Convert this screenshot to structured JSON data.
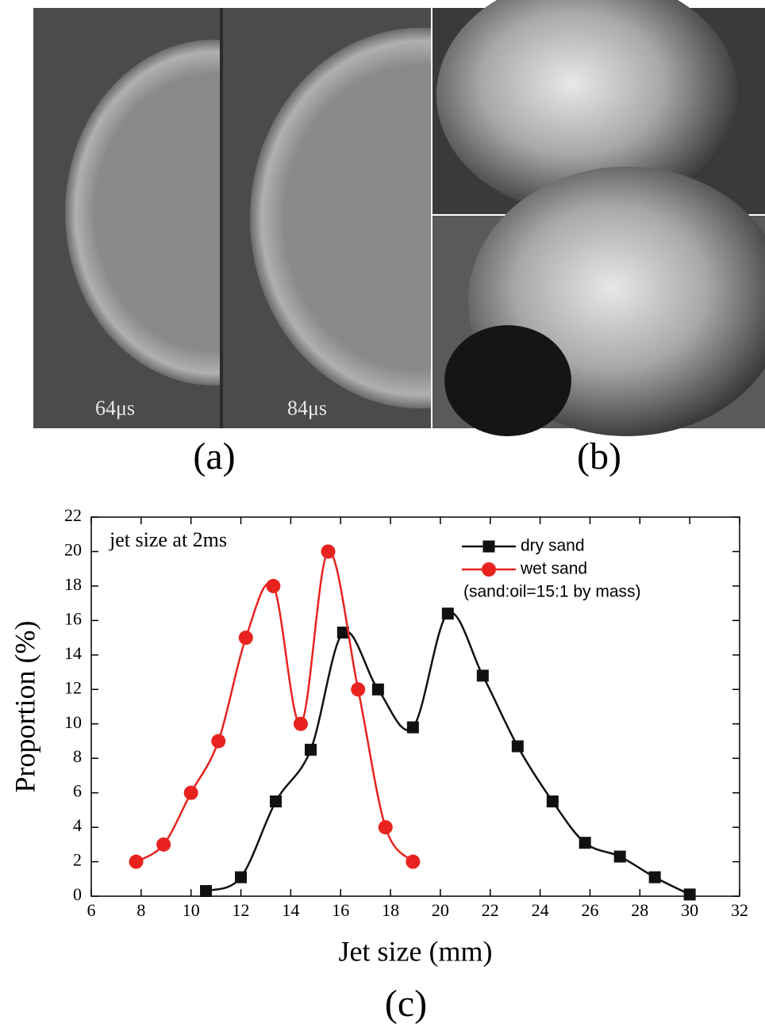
{
  "panel_a": {
    "label": "(a)",
    "frames": [
      "64μs",
      "84μs"
    ]
  },
  "panel_b": {
    "label": "(b)"
  },
  "chart_data": {
    "type": "line",
    "panel_label": "(c)",
    "x_label": "Jet size (mm)",
    "y_label": "Proportion (%)",
    "annotation": "jet size at 2ms",
    "legend_note": "(sand:oil=15:1 by mass)",
    "legend": "top-right",
    "xlim": [
      6,
      32
    ],
    "xticks": [
      6,
      8,
      10,
      12,
      14,
      16,
      18,
      20,
      22,
      24,
      26,
      28,
      30,
      32
    ],
    "ylim": [
      0,
      22
    ],
    "yticks": [
      0,
      2,
      4,
      6,
      8,
      10,
      12,
      14,
      16,
      18,
      20,
      22
    ],
    "series": [
      {
        "name": "dry sand",
        "color": "#111111",
        "marker": "square",
        "x": [
          10.6,
          12.0,
          13.4,
          14.8,
          16.1,
          17.5,
          18.9,
          20.3,
          21.7,
          23.1,
          24.5,
          25.8,
          27.2,
          28.6,
          30.0
        ],
        "values": [
          0.3,
          1.1,
          5.5,
          8.5,
          15.3,
          12.0,
          9.8,
          16.4,
          12.8,
          8.7,
          5.5,
          3.1,
          2.3,
          1.1,
          0.1
        ]
      },
      {
        "name": "wet sand",
        "color": "#e8231f",
        "marker": "circle",
        "x": [
          7.8,
          8.9,
          10.0,
          11.1,
          12.2,
          13.3,
          14.4,
          15.5,
          16.7,
          17.8,
          18.9
        ],
        "values": [
          2,
          3,
          6,
          9,
          15,
          18,
          10,
          20,
          12,
          4,
          2
        ]
      }
    ]
  }
}
